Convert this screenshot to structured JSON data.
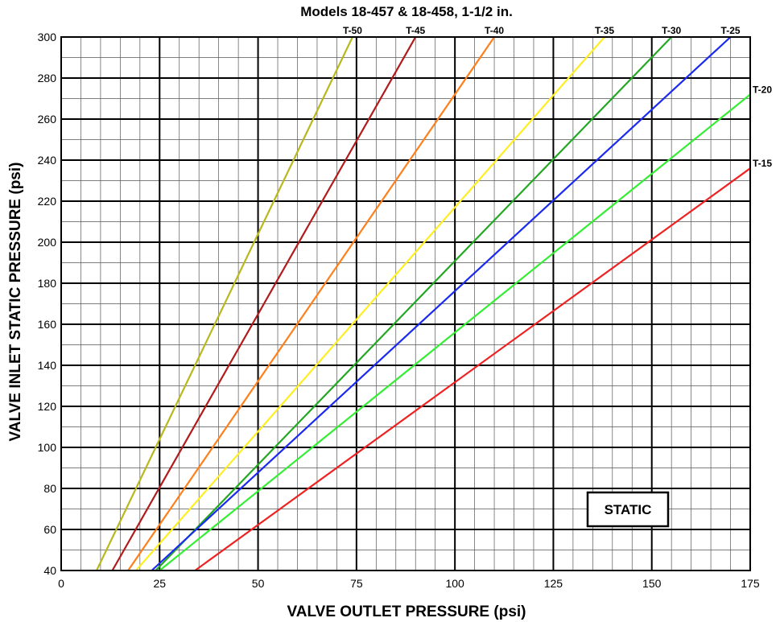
{
  "chart_data": {
    "type": "line",
    "title": "Models 18-457 & 18-458, 1-1/2 in.",
    "xlabel": "VALVE OUTLET PRESSURE (psi)",
    "ylabel": "VALVE INLET STATIC PRESSURE (psi)",
    "xlim": [
      0,
      175
    ],
    "ylim": [
      40,
      300
    ],
    "xticks": [
      0,
      25,
      50,
      75,
      100,
      125,
      150,
      175
    ],
    "yticks": [
      40,
      60,
      80,
      100,
      120,
      140,
      160,
      180,
      200,
      220,
      240,
      260,
      280,
      300
    ],
    "x_minor_step": 5,
    "y_minor_step": 10,
    "grid": true,
    "annotation": "STATIC",
    "series": [
      {
        "name": "T-50",
        "color": "#b8b81e",
        "x": [
          9,
          74
        ],
        "y": [
          40,
          300
        ]
      },
      {
        "name": "T-45",
        "color": "#b01c1c",
        "x": [
          13,
          90
        ],
        "y": [
          40,
          300
        ]
      },
      {
        "name": "T-40",
        "color": "#ff7f1a",
        "x": [
          17,
          110
        ],
        "y": [
          40,
          300
        ]
      },
      {
        "name": "T-35",
        "color": "#ffee22",
        "x": [
          19,
          138
        ],
        "y": [
          40,
          300
        ]
      },
      {
        "name": "T-30",
        "color": "#22a822",
        "x": [
          24,
          155
        ],
        "y": [
          40,
          300
        ]
      },
      {
        "name": "T-25",
        "color": "#1a2aee",
        "x": [
          23,
          170
        ],
        "y": [
          40,
          300
        ]
      },
      {
        "name": "T-20",
        "color": "#33ee33",
        "x": [
          25,
          175
        ],
        "y": [
          40,
          272
        ]
      },
      {
        "name": "T-15",
        "color": "#ee2222",
        "x": [
          34,
          175
        ],
        "y": [
          40,
          236
        ]
      }
    ]
  }
}
